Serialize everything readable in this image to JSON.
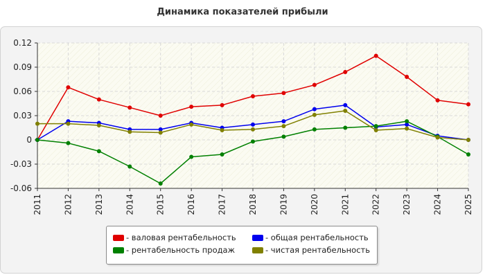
{
  "title": "Динамика показателей прибыли",
  "chart_data": {
    "type": "line",
    "title": "Динамика показателей прибыли",
    "xlabel": "",
    "ylabel": "",
    "categories": [
      "2011",
      "2012",
      "2013",
      "2014",
      "2015",
      "2016",
      "2017",
      "2018",
      "2019",
      "2020",
      "2021",
      "2022",
      "2023",
      "2024",
      "2025"
    ],
    "ylim": [
      -0.06,
      0.12
    ],
    "yticks": [
      -0.06,
      -0.03,
      0,
      0.03,
      0.06,
      0.09,
      0.12
    ],
    "ytick_labels": [
      "-0.06",
      "-0.03",
      "0",
      "0.03",
      "0.06",
      "0.09",
      "0.12"
    ],
    "grid": true,
    "legend_position": "bottom",
    "series": [
      {
        "name": "- валовая рентабельность",
        "color": "#e00000",
        "values": [
          0.0,
          0.065,
          0.05,
          0.04,
          0.03,
          0.041,
          0.043,
          0.054,
          0.058,
          0.068,
          0.084,
          0.104,
          0.078,
          0.049,
          0.044
        ]
      },
      {
        "name": "- общая рентабельность",
        "color": "#0000ee",
        "values": [
          0.0,
          0.023,
          0.021,
          0.013,
          0.013,
          0.021,
          0.015,
          0.019,
          0.023,
          0.038,
          0.043,
          0.016,
          0.019,
          0.005,
          0.0
        ]
      },
      {
        "name": "- рентабельность продаж",
        "color": "#008000",
        "values": [
          0.0,
          -0.004,
          -0.014,
          -0.033,
          -0.054,
          -0.021,
          -0.018,
          -0.002,
          0.004,
          0.013,
          0.015,
          0.017,
          0.023,
          0.004,
          -0.018
        ]
      },
      {
        "name": "- чистая рентабельность",
        "color": "#808000",
        "values": [
          0.02,
          0.02,
          0.018,
          0.01,
          0.009,
          0.019,
          0.012,
          0.013,
          0.017,
          0.031,
          0.036,
          0.012,
          0.014,
          0.003,
          0.0
        ]
      }
    ]
  },
  "legend": {
    "items": [
      {
        "label": "- валовая рентабельность",
        "color": "#e00000"
      },
      {
        "label": "- общая рентабельность",
        "color": "#0000ee"
      },
      {
        "label": "- рентабельность продаж",
        "color": "#008000"
      },
      {
        "label": "- чистая рентабельность",
        "color": "#808000"
      }
    ]
  }
}
